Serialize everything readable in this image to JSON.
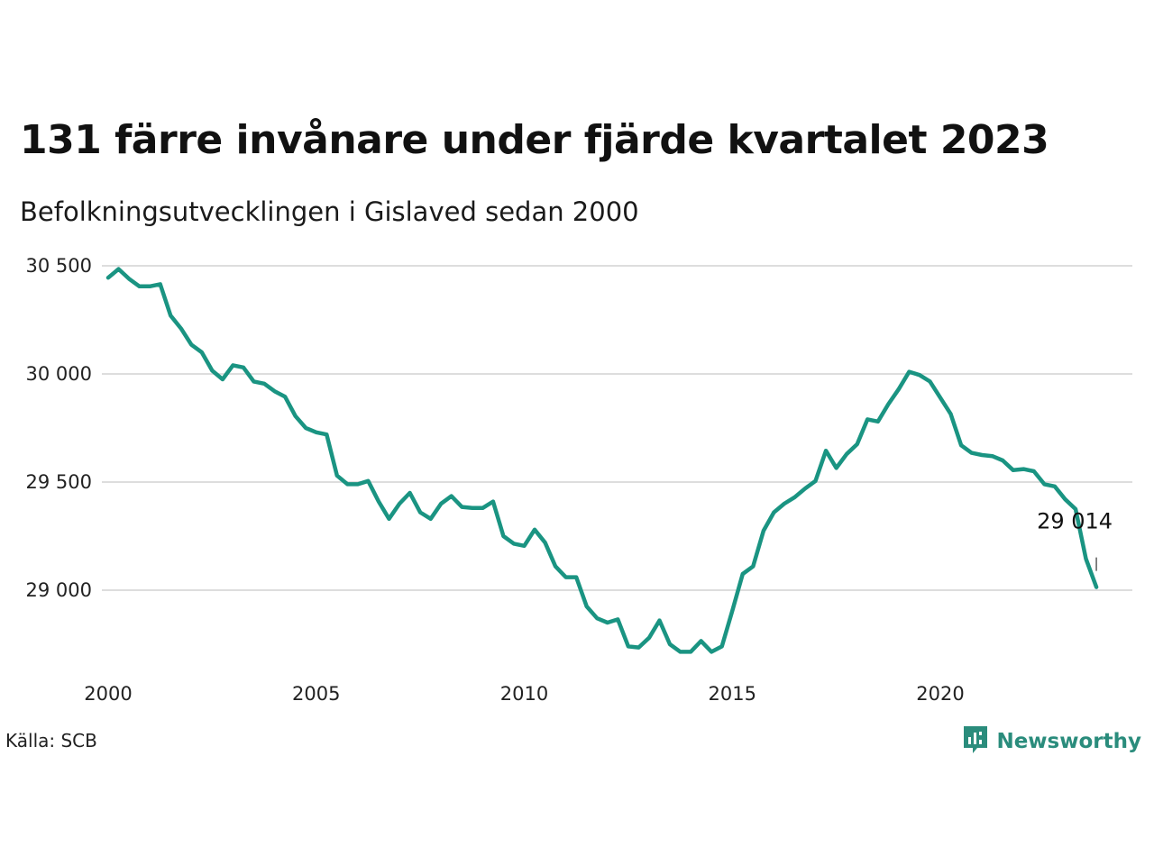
{
  "title": "131 färre invånare under fjärde kvartalet 2023",
  "subtitle": "Befolkningsutvecklingen i Gislaved sedan 2000",
  "source": "Källa: SCB",
  "brand": {
    "name": "Newsworthy",
    "icon": "newsworthy-logo-icon",
    "color": "#2a8c7c"
  },
  "chart_data": {
    "type": "line",
    "title": "131 färre invånare under fjärde kvartalet 2023",
    "subtitle": "Befolkningsutvecklingen i Gislaved sedan 2000",
    "xlabel": "",
    "ylabel": "",
    "xlim": [
      2000,
      2024.9
    ],
    "ylim": [
      28700,
      30500
    ],
    "grid": "horizontal",
    "legend": "none",
    "line_color": "#1a9482",
    "y_ticks": [
      {
        "value": 30500,
        "label": "30 500"
      },
      {
        "value": 30000,
        "label": "30 000"
      },
      {
        "value": 29500,
        "label": "29 500"
      },
      {
        "value": 29000,
        "label": "29 000"
      }
    ],
    "x_ticks": [
      {
        "value": 2000,
        "label": "2000"
      },
      {
        "value": 2005,
        "label": "2005"
      },
      {
        "value": 2010,
        "label": "2010"
      },
      {
        "value": 2015,
        "label": "2015"
      },
      {
        "value": 2020,
        "label": "2020"
      }
    ],
    "end_label": "29 014",
    "series": [
      {
        "x": [
          2000.0,
          2000.25,
          2000.5,
          2000.75,
          2001.0,
          2001.25,
          2001.5,
          2001.75,
          2002.0,
          2002.25,
          2002.5,
          2002.75,
          2003.0,
          2003.25,
          2003.5,
          2003.75,
          2004.0,
          2004.25,
          2004.5,
          2004.75,
          2005.0,
          2005.25,
          2005.5,
          2005.75,
          2006.0,
          2006.25,
          2006.5,
          2006.75,
          2007.0,
          2007.25,
          2007.5,
          2007.75,
          2008.0,
          2008.25,
          2008.5,
          2008.75,
          2009.0,
          2009.25,
          2009.5,
          2009.75,
          2010.0,
          2010.25,
          2010.5,
          2010.75,
          2011.0,
          2011.25,
          2011.5,
          2011.75,
          2012.0,
          2012.25,
          2012.5,
          2012.75,
          2013.0,
          2013.25,
          2013.5,
          2013.75,
          2014.0,
          2014.25,
          2014.5,
          2014.75,
          2015.0,
          2015.25,
          2015.5,
          2015.75,
          2016.0,
          2016.25,
          2016.5,
          2016.75,
          2017.0,
          2017.25,
          2017.5,
          2017.75,
          2018.0,
          2018.25,
          2018.5,
          2018.75,
          2019.0,
          2019.25,
          2019.5,
          2019.75,
          2020.0,
          2020.25,
          2020.5,
          2020.75,
          2021.0,
          2021.25,
          2021.5,
          2021.75,
          2022.0,
          2022.25,
          2022.5,
          2022.75,
          2023.0,
          2023.25,
          2023.5,
          2023.75
        ],
        "values": [
          30445,
          30485,
          30440,
          30405,
          30405,
          30415,
          30270,
          30210,
          30135,
          30100,
          30015,
          29975,
          30040,
          30030,
          29965,
          29955,
          29920,
          29895,
          29805,
          29750,
          29730,
          29720,
          29530,
          29490,
          29490,
          29505,
          29410,
          29330,
          29400,
          29450,
          29360,
          29330,
          29400,
          29435,
          29385,
          29380,
          29380,
          29410,
          29250,
          29215,
          29205,
          29280,
          29220,
          29110,
          29060,
          29060,
          28925,
          28870,
          28850,
          28865,
          28740,
          28735,
          28780,
          28860,
          28750,
          28715,
          28715,
          28765,
          28715,
          28740,
          28905,
          29075,
          29110,
          29275,
          29360,
          29400,
          29430,
          29470,
          29505,
          29645,
          29565,
          29630,
          29675,
          29790,
          29780,
          29860,
          29930,
          30010,
          29995,
          29965,
          29890,
          29815,
          29670,
          29635,
          29625,
          29620,
          29600,
          29555,
          29560,
          29550,
          29490,
          29480,
          29420,
          29375,
          29145,
          29014
        ]
      }
    ]
  }
}
